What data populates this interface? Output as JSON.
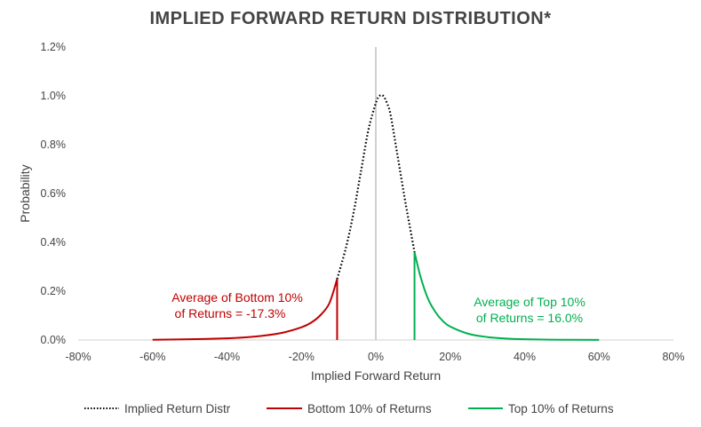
{
  "chart_data": {
    "type": "line",
    "title": "IMPLIED FORWARD RETURN DISTRIBUTION*",
    "xlabel": "Implied Forward Return",
    "ylabel": "Probability",
    "xlim": [
      -80,
      80
    ],
    "ylim": [
      0,
      1.2
    ],
    "x_ticks": [
      "-80%",
      "-60%",
      "-40%",
      "-20%",
      "0%",
      "20%",
      "40%",
      "60%",
      "80%"
    ],
    "y_ticks": [
      "0.0%",
      "0.2%",
      "0.4%",
      "0.6%",
      "0.8%",
      "1.0%",
      "1.2%"
    ],
    "grid": false,
    "legend_position": "bottom",
    "series": [
      {
        "name": "Implied Return Distr",
        "color": "#000000",
        "style": "dotted",
        "x": [
          -10.4,
          -8,
          -6,
          -4,
          -2,
          0,
          1,
          2,
          3,
          4,
          6,
          8,
          10.4
        ],
        "y": [
          0.25,
          0.38,
          0.52,
          0.69,
          0.86,
          0.97,
          1.0,
          1.0,
          0.97,
          0.92,
          0.74,
          0.56,
          0.36
        ]
      },
      {
        "name": "Bottom 10% of Returns",
        "color": "#c00000",
        "style": "solid",
        "x": [
          -60,
          -50,
          -40,
          -35,
          -30,
          -25,
          -20,
          -17.5,
          -15,
          -12.5,
          -10.4
        ],
        "y": [
          0.001,
          0.003,
          0.007,
          0.011,
          0.018,
          0.03,
          0.052,
          0.07,
          0.1,
          0.15,
          0.25
        ],
        "cutoff_x": -10.4,
        "annotation": [
          "Average of Bottom 10%",
          "of Returns = -17.3%"
        ]
      },
      {
        "name": "Top 10% of Returns",
        "color": "#00b050",
        "style": "solid",
        "x": [
          10.4,
          12,
          14,
          16,
          18,
          20,
          25,
          30,
          35,
          40,
          50,
          60
        ],
        "y": [
          0.36,
          0.26,
          0.17,
          0.115,
          0.078,
          0.055,
          0.025,
          0.012,
          0.006,
          0.003,
          0.001,
          0.0005
        ],
        "cutoff_x": 10.4,
        "annotation": [
          "Average of Top 10%",
          "of Returns = 16.0%"
        ]
      }
    ]
  }
}
